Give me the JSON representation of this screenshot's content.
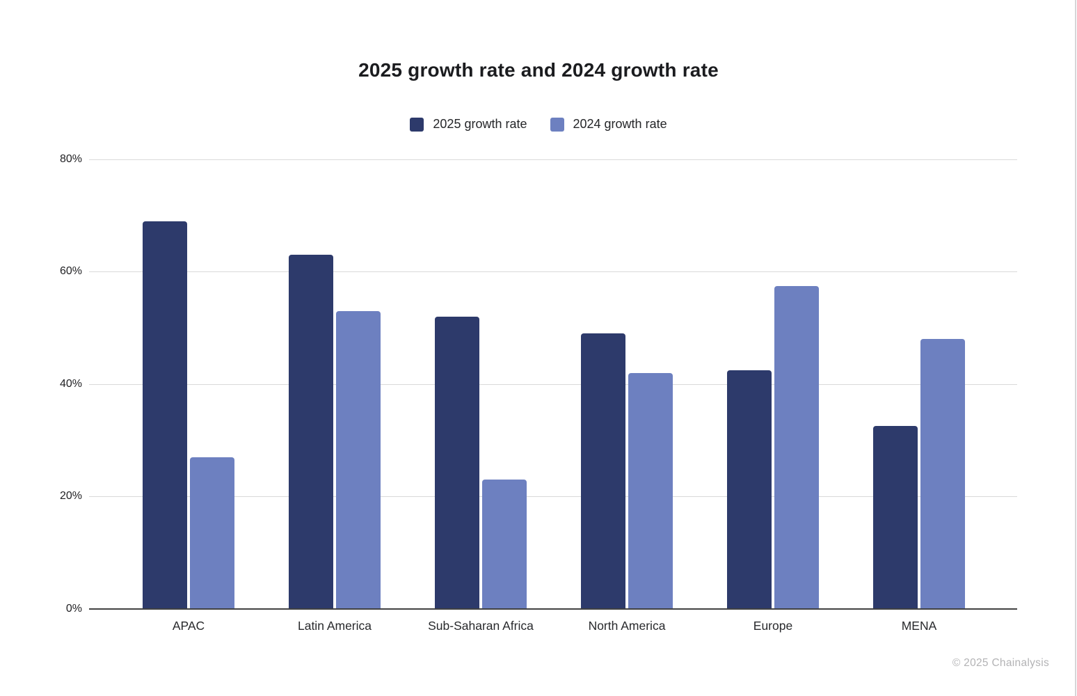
{
  "footer": {
    "copyright": "© 2025 Chainalysis"
  },
  "colors": {
    "series_2025": "#2d3a6b",
    "series_2024": "#6d80c0",
    "gridline": "#d9d9d9",
    "axis_line": "#424242",
    "tick_text": "#212124",
    "muted_text": "#b3b3b5"
  },
  "chart_data": {
    "type": "bar",
    "title": "2025 growth rate and 2024 growth rate",
    "categories": [
      "APAC",
      "Latin America",
      "Sub-Saharan Africa",
      "North America",
      "Europe",
      "MENA"
    ],
    "series": [
      {
        "name": "2025 growth rate",
        "color": "#2d3a6b",
        "values": [
          69,
          63,
          52,
          49,
          42.5,
          32.5
        ]
      },
      {
        "name": "2024 growth rate",
        "color": "#6d80c0",
        "values": [
          27,
          53,
          23,
          42,
          57.5,
          48
        ]
      }
    ],
    "xlabel": "",
    "ylabel": "",
    "ylim": [
      0,
      80
    ],
    "y_ticks": [
      0,
      20,
      40,
      60,
      80
    ],
    "y_tick_format": "percent",
    "grid": true,
    "legend_position": "top"
  }
}
